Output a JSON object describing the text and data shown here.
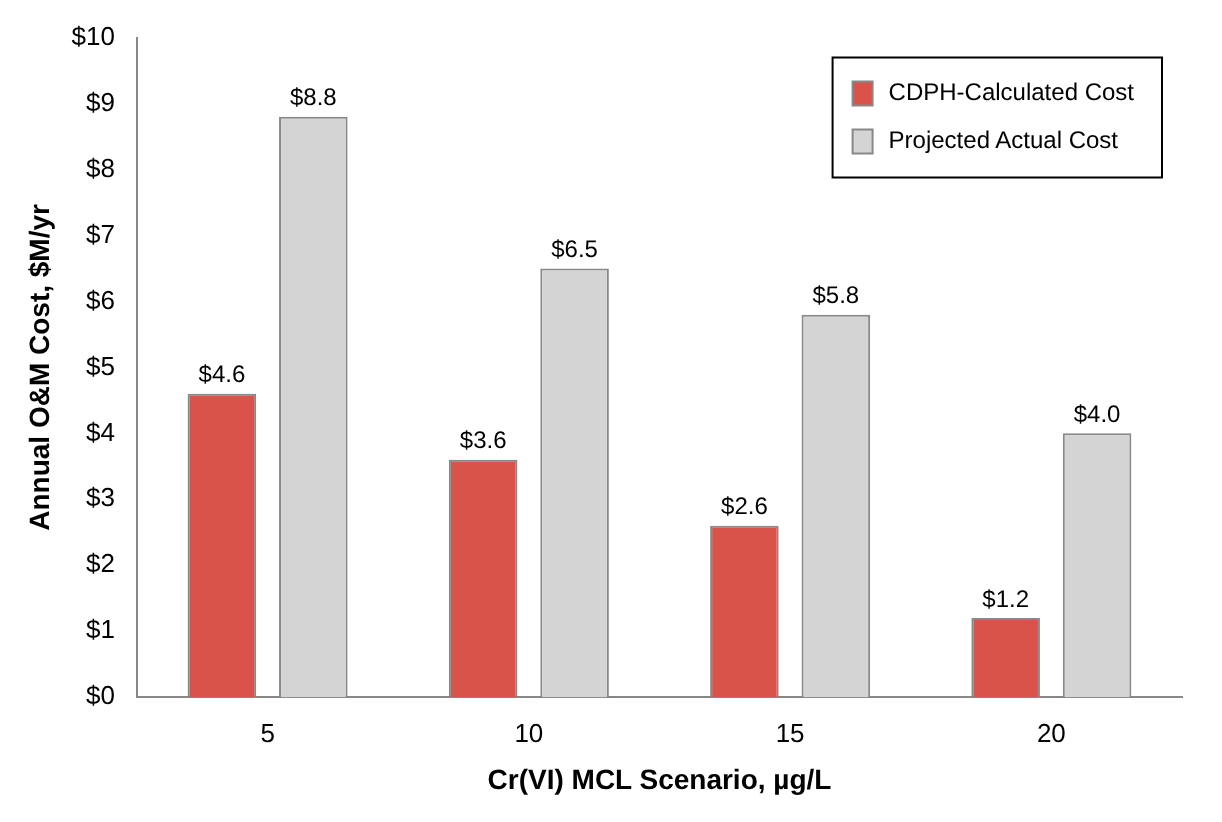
{
  "chart_data": {
    "type": "bar",
    "xlabel": "Cr(VI) MCL Scenario, µg/L",
    "ylabel": "Annual O&M Cost, $M/yr",
    "categories": [
      "5",
      "10",
      "15",
      "20"
    ],
    "series": [
      {
        "name": "CDPH-Calculated Cost",
        "color": "#d9534a",
        "values": [
          4.6,
          3.6,
          2.6,
          1.2
        ],
        "value_labels": [
          "$4.6",
          "$3.6",
          "$2.6",
          "$1.2"
        ]
      },
      {
        "name": "Projected Actual Cost",
        "color": "#d4d4d4",
        "values": [
          8.8,
          6.5,
          5.8,
          4.0
        ],
        "value_labels": [
          "$8.8",
          "$6.5",
          "$5.8",
          "$4.0"
        ]
      }
    ],
    "ylim": [
      0,
      10
    ],
    "yticks": [
      {
        "value": 0,
        "label": "$0"
      },
      {
        "value": 1,
        "label": "$1"
      },
      {
        "value": 2,
        "label": "$2"
      },
      {
        "value": 3,
        "label": "$3"
      },
      {
        "value": 4,
        "label": "$4"
      },
      {
        "value": 5,
        "label": "$5"
      },
      {
        "value": 6,
        "label": "$6"
      },
      {
        "value": 7,
        "label": "$7"
      },
      {
        "value": 8,
        "label": "$8"
      },
      {
        "value": 9,
        "label": "$9"
      },
      {
        "value": 10,
        "label": "$10"
      }
    ],
    "grid": false,
    "legend": "top right"
  }
}
